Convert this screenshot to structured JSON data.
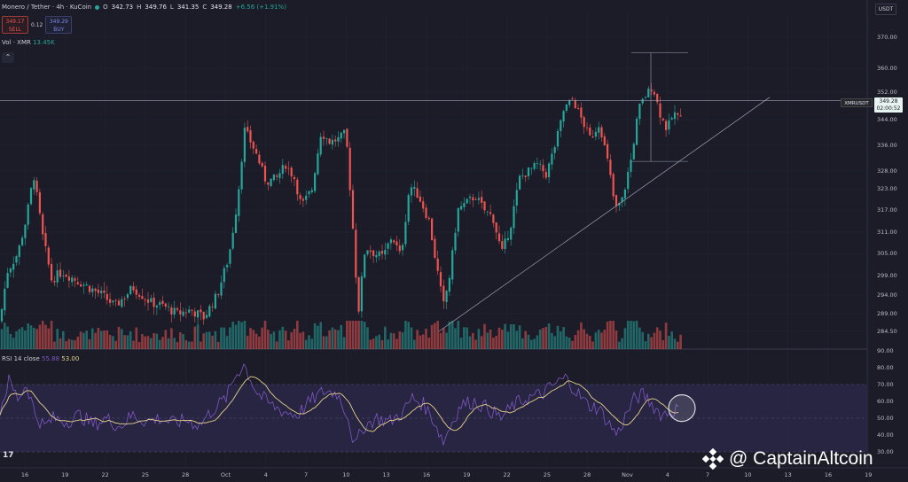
{
  "header": {
    "symbol": "Monero / Tether · 4h · KuCoin",
    "open_label": "O",
    "open": "342.73",
    "high_label": "H",
    "high": "349.76",
    "low_label": "L",
    "low": "341.35",
    "close_label": "C",
    "close": "349.28",
    "change": "+6.56 (+1.91%)"
  },
  "trade": {
    "sell_price": "349.17",
    "sell_label": "SELL",
    "spread": "0.12",
    "buy_price": "349.29",
    "buy_label": "BUY"
  },
  "volume_indicator": {
    "label": "Vol · XMR",
    "value": "13.45K"
  },
  "collapse_glyph": "⌃",
  "rsi_indicator": {
    "label": "RSI 14 close",
    "value1": "55.88",
    "value2": "53.00"
  },
  "currency_button": "USDT",
  "last_price": {
    "symbol": "XMRUSDT",
    "price": "349.28",
    "countdown": "02:00:52"
  },
  "tv_logo": "17",
  "watermark": "@ CaptainAltcoin",
  "colors": {
    "up": "#26a69a",
    "down": "#ef5350",
    "rsi": "#7e57c2",
    "rsi_ma": "#e6d28a",
    "band": "#2a2747"
  },
  "chart_data": {
    "type": "candlestick",
    "timeframe": "4h",
    "price_ticks": [
      "370.00",
      "360.00",
      "352.00",
      "344.00",
      "336.00",
      "328.00",
      "323.00",
      "317.00",
      "311.00",
      "305.00",
      "299.00",
      "294.00",
      "289.00",
      "284.50"
    ],
    "rsi_ticks": [
      "90.00",
      "80.00",
      "70.00",
      "60.00",
      "50.00",
      "40.00",
      "30.00"
    ],
    "x_ticks": [
      "16",
      "19",
      "22",
      "25",
      "28",
      "Oct",
      "4",
      "7",
      "10",
      "13",
      "16",
      "19",
      "22",
      "25",
      "28",
      "Nov",
      "4",
      "7",
      "10",
      "13",
      "16",
      "19"
    ],
    "price_anchors": [
      {
        "x": 0,
        "y": 287
      },
      {
        "x": 8,
        "y": 300
      },
      {
        "x": 20,
        "y": 305
      },
      {
        "x": 30,
        "y": 315
      },
      {
        "x": 38,
        "y": 327
      },
      {
        "x": 48,
        "y": 310
      },
      {
        "x": 58,
        "y": 298
      },
      {
        "x": 70,
        "y": 300
      },
      {
        "x": 85,
        "y": 298
      },
      {
        "x": 100,
        "y": 296
      },
      {
        "x": 115,
        "y": 294
      },
      {
        "x": 130,
        "y": 291
      },
      {
        "x": 150,
        "y": 296
      },
      {
        "x": 170,
        "y": 292
      },
      {
        "x": 185,
        "y": 291
      },
      {
        "x": 200,
        "y": 289
      },
      {
        "x": 215,
        "y": 290
      },
      {
        "x": 230,
        "y": 288
      },
      {
        "x": 245,
        "y": 294
      },
      {
        "x": 258,
        "y": 304
      },
      {
        "x": 268,
        "y": 320
      },
      {
        "x": 276,
        "y": 341
      },
      {
        "x": 288,
        "y": 334
      },
      {
        "x": 300,
        "y": 325
      },
      {
        "x": 312,
        "y": 326
      },
      {
        "x": 322,
        "y": 330
      },
      {
        "x": 332,
        "y": 326
      },
      {
        "x": 340,
        "y": 318
      },
      {
        "x": 352,
        "y": 323
      },
      {
        "x": 362,
        "y": 340
      },
      {
        "x": 372,
        "y": 337
      },
      {
        "x": 382,
        "y": 338
      },
      {
        "x": 390,
        "y": 340
      },
      {
        "x": 398,
        "y": 312
      },
      {
        "x": 404,
        "y": 289
      },
      {
        "x": 412,
        "y": 307
      },
      {
        "x": 422,
        "y": 305
      },
      {
        "x": 432,
        "y": 304
      },
      {
        "x": 442,
        "y": 310
      },
      {
        "x": 452,
        "y": 304
      },
      {
        "x": 462,
        "y": 324
      },
      {
        "x": 472,
        "y": 321
      },
      {
        "x": 484,
        "y": 314
      },
      {
        "x": 492,
        "y": 302
      },
      {
        "x": 500,
        "y": 291
      },
      {
        "x": 508,
        "y": 300
      },
      {
        "x": 516,
        "y": 317
      },
      {
        "x": 526,
        "y": 319
      },
      {
        "x": 536,
        "y": 321
      },
      {
        "x": 546,
        "y": 317
      },
      {
        "x": 556,
        "y": 315
      },
      {
        "x": 566,
        "y": 305
      },
      {
        "x": 576,
        "y": 313
      },
      {
        "x": 586,
        "y": 326
      },
      {
        "x": 596,
        "y": 328
      },
      {
        "x": 606,
        "y": 330
      },
      {
        "x": 616,
        "y": 327
      },
      {
        "x": 626,
        "y": 336
      },
      {
        "x": 636,
        "y": 347
      },
      {
        "x": 646,
        "y": 350
      },
      {
        "x": 656,
        "y": 344
      },
      {
        "x": 666,
        "y": 338
      },
      {
        "x": 676,
        "y": 343
      },
      {
        "x": 686,
        "y": 330
      },
      {
        "x": 694,
        "y": 317
      },
      {
        "x": 702,
        "y": 320
      },
      {
        "x": 712,
        "y": 332
      },
      {
        "x": 720,
        "y": 347
      },
      {
        "x": 728,
        "y": 351
      },
      {
        "x": 736,
        "y": 354
      },
      {
        "x": 744,
        "y": 346
      },
      {
        "x": 752,
        "y": 341
      },
      {
        "x": 760,
        "y": 346
      },
      {
        "x": 766,
        "y": 344
      },
      {
        "x": 770,
        "y": 349.28
      }
    ],
    "rsi_anchors": [
      {
        "x": 0,
        "y": 55
      },
      {
        "x": 10,
        "y": 72
      },
      {
        "x": 20,
        "y": 62
      },
      {
        "x": 30,
        "y": 70
      },
      {
        "x": 40,
        "y": 52
      },
      {
        "x": 50,
        "y": 45
      },
      {
        "x": 60,
        "y": 50
      },
      {
        "x": 75,
        "y": 48
      },
      {
        "x": 90,
        "y": 52
      },
      {
        "x": 105,
        "y": 46
      },
      {
        "x": 120,
        "y": 50
      },
      {
        "x": 135,
        "y": 45
      },
      {
        "x": 150,
        "y": 52
      },
      {
        "x": 165,
        "y": 48
      },
      {
        "x": 180,
        "y": 50
      },
      {
        "x": 195,
        "y": 47
      },
      {
        "x": 210,
        "y": 49
      },
      {
        "x": 225,
        "y": 46
      },
      {
        "x": 240,
        "y": 55
      },
      {
        "x": 255,
        "y": 62
      },
      {
        "x": 265,
        "y": 75
      },
      {
        "x": 275,
        "y": 82
      },
      {
        "x": 290,
        "y": 65
      },
      {
        "x": 305,
        "y": 58
      },
      {
        "x": 320,
        "y": 54
      },
      {
        "x": 335,
        "y": 52
      },
      {
        "x": 350,
        "y": 60
      },
      {
        "x": 365,
        "y": 66
      },
      {
        "x": 380,
        "y": 65
      },
      {
        "x": 392,
        "y": 52
      },
      {
        "x": 400,
        "y": 33
      },
      {
        "x": 410,
        "y": 45
      },
      {
        "x": 425,
        "y": 50
      },
      {
        "x": 440,
        "y": 48
      },
      {
        "x": 455,
        "y": 54
      },
      {
        "x": 465,
        "y": 62
      },
      {
        "x": 478,
        "y": 58
      },
      {
        "x": 490,
        "y": 48
      },
      {
        "x": 500,
        "y": 36
      },
      {
        "x": 510,
        "y": 48
      },
      {
        "x": 520,
        "y": 58
      },
      {
        "x": 535,
        "y": 60
      },
      {
        "x": 550,
        "y": 56
      },
      {
        "x": 565,
        "y": 50
      },
      {
        "x": 580,
        "y": 58
      },
      {
        "x": 595,
        "y": 62
      },
      {
        "x": 610,
        "y": 64
      },
      {
        "x": 625,
        "y": 70
      },
      {
        "x": 638,
        "y": 74
      },
      {
        "x": 650,
        "y": 66
      },
      {
        "x": 662,
        "y": 58
      },
      {
        "x": 675,
        "y": 56
      },
      {
        "x": 688,
        "y": 46
      },
      {
        "x": 696,
        "y": 40
      },
      {
        "x": 706,
        "y": 52
      },
      {
        "x": 716,
        "y": 62
      },
      {
        "x": 726,
        "y": 64
      },
      {
        "x": 736,
        "y": 58
      },
      {
        "x": 746,
        "y": 52
      },
      {
        "x": 756,
        "y": 54
      },
      {
        "x": 766,
        "y": 55.88
      }
    ],
    "rsi_bands": {
      "upper": 70,
      "middle": 50,
      "lower": 30
    }
  }
}
